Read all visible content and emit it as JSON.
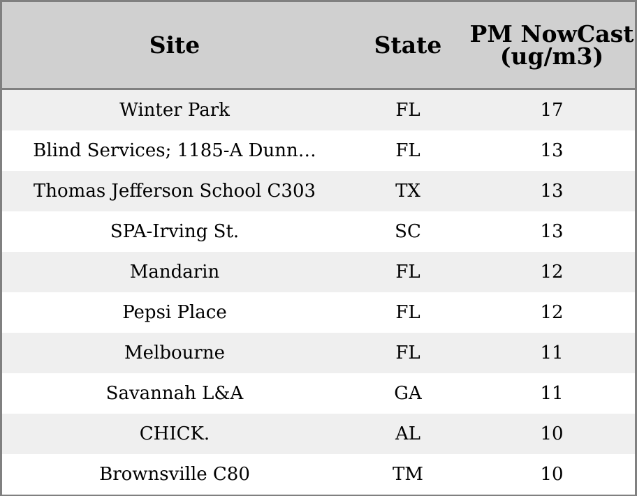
{
  "chart_data": {
    "type": "table",
    "columns": [
      "Site",
      "State",
      "PM NowCast\n(ug/m3)"
    ],
    "rows": [
      {
        "site": "Winter Park",
        "state": "FL",
        "value": 17
      },
      {
        "site": "Blind Services; 1185-A Dunn…",
        "state": "FL",
        "value": 13
      },
      {
        "site": "Thomas Jefferson School C303",
        "state": "TX",
        "value": 13
      },
      {
        "site": "SPA-Irving St.",
        "state": "SC",
        "value": 13
      },
      {
        "site": "Mandarin",
        "state": "FL",
        "value": 12
      },
      {
        "site": "Pepsi Place",
        "state": "FL",
        "value": 12
      },
      {
        "site": "Melbourne",
        "state": "FL",
        "value": 11
      },
      {
        "site": "Savannah L&A",
        "state": "GA",
        "value": 11
      },
      {
        "site": "CHICK.",
        "state": "AL",
        "value": 10
      },
      {
        "site": "Brownsville C80",
        "state": "TM",
        "value": 10
      }
    ]
  },
  "colors": {
    "header_bg": "#d0d0d0",
    "row_odd_bg": "#efefef",
    "row_even_bg": "#ffffff",
    "border": "#808080"
  }
}
